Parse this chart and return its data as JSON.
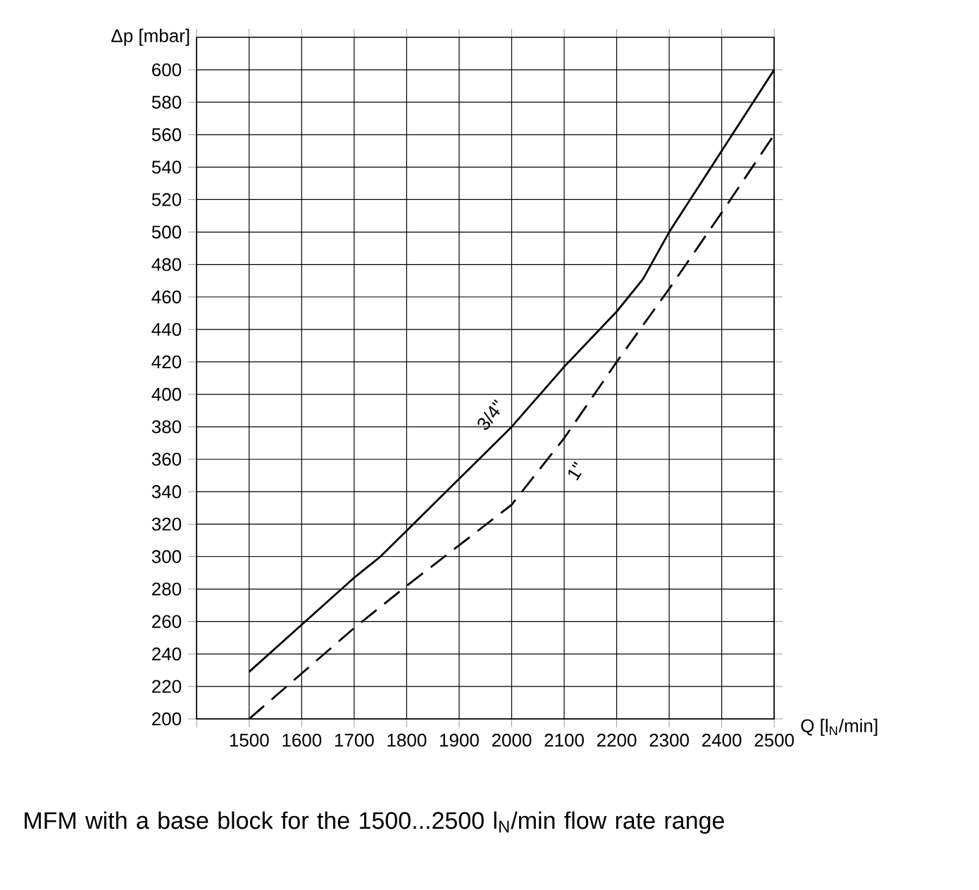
{
  "chart_data": {
    "type": "line",
    "xlabel": "Q [l$_{N}$/min]",
    "ylabel": "Δp [mbar]",
    "annotations": [
      "MFM with a base block for the 1500...2500 l$_{N}$/min flow rate range"
    ],
    "xlim": [
      1400,
      2500
    ],
    "xticks": [
      {
        "value": 1400,
        "label": null
      },
      1500,
      1600,
      1700,
      1800,
      1900,
      2000,
      2100,
      2200,
      2300,
      2400,
      2500
    ],
    "ylim": [
      200,
      620
    ],
    "yticks": [
      200,
      220,
      240,
      260,
      280,
      300,
      320,
      340,
      360,
      380,
      400,
      420,
      440,
      460,
      480,
      500,
      520,
      540,
      560,
      580,
      600
    ],
    "grid": true,
    "series": [
      {
        "name": "3/4\"",
        "color": "#000000",
        "line_style": "solid",
        "x": [
          1500,
          1600,
          1700,
          1750,
          1800,
          1900,
          2000,
          2100,
          2200,
          2250,
          2300,
          2400,
          2500
        ],
        "values": [
          229,
          258,
          287,
          300,
          316,
          348,
          380,
          417,
          451,
          471,
          500,
          550,
          600
        ]
      },
      {
        "name": "1\"",
        "color": "#000000",
        "line_style": "dashed",
        "x": [
          1500,
          1600,
          1700,
          1800,
          1900,
          2000,
          2100,
          2200,
          2300,
          2400,
          2500
        ],
        "values": [
          200,
          228,
          256,
          282,
          307,
          332,
          373,
          420,
          465,
          512,
          560
        ]
      }
    ]
  }
}
